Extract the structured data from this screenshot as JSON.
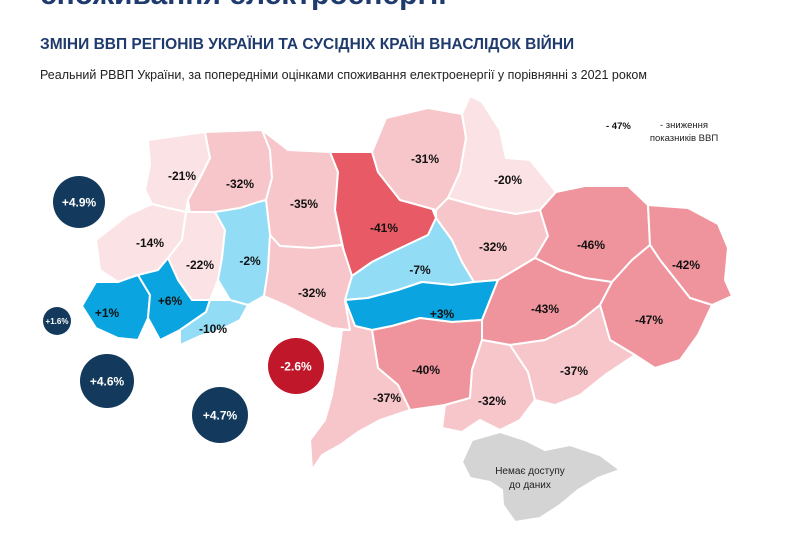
{
  "header": {
    "cut_title": "споживання електроенергії",
    "title": "ЗМІНИ ВВП РЕГІОНІВ УКРАЇНИ ТА СУСІДНІХ КРАЇН ВНАСЛІДОК ВІЙНИ",
    "subtitle": "Реальний РВВП України, за попередніми оцінками споживання електроенергії у порівнянні з 2021 роком"
  },
  "legend": {
    "value": "- 47%",
    "description": "- зниження показників ВВП"
  },
  "regions": [
    {
      "key": "volyn",
      "label": "-21%",
      "value": -21
    },
    {
      "key": "rivne",
      "label": "-32%",
      "value": -32
    },
    {
      "key": "zhytomyr",
      "label": "-35%",
      "value": -35
    },
    {
      "key": "kyiv",
      "label": "-41%",
      "value": -41
    },
    {
      "key": "chernihiv",
      "label": "-31%",
      "value": -31
    },
    {
      "key": "sumy",
      "label": "-20%",
      "value": -20
    },
    {
      "key": "lviv",
      "label": "-14%",
      "value": -14
    },
    {
      "key": "ternopil",
      "label": "-22%",
      "value": -22
    },
    {
      "key": "khmelnytskyi",
      "label": "-2%",
      "value": -2
    },
    {
      "key": "vinnytsia",
      "label": "-32%",
      "value": -32
    },
    {
      "key": "cherkasy",
      "label": "-7%",
      "value": -7
    },
    {
      "key": "poltava",
      "label": "-32%",
      "value": -32
    },
    {
      "key": "kharkiv",
      "label": "-46%",
      "value": -46
    },
    {
      "key": "luhansk",
      "label": "-42%",
      "value": -42
    },
    {
      "key": "zakarpattia",
      "label": "+1%",
      "value": 1
    },
    {
      "key": "ivano-frankivsk",
      "label": "+6%",
      "value": 6
    },
    {
      "key": "chernivtsi",
      "label": "-10%",
      "value": -10
    },
    {
      "key": "kirovohrad",
      "label": "+3%",
      "value": 3
    },
    {
      "key": "dnipropetrovsk",
      "label": "-43%",
      "value": -43
    },
    {
      "key": "donetsk",
      "label": "-47%",
      "value": -47
    },
    {
      "key": "mykolaiv",
      "label": "-40%",
      "value": -40
    },
    {
      "key": "odesa",
      "label": "-37%",
      "value": -37
    },
    {
      "key": "kherson",
      "label": "-32%",
      "value": -32
    },
    {
      "key": "zaporizhzhia",
      "label": "-37%",
      "value": -37
    }
  ],
  "neighbors": [
    {
      "key": "poland",
      "label": "+4.9%",
      "value": 4.9
    },
    {
      "key": "slovakia",
      "label": "+1.6%",
      "value": 1.6
    },
    {
      "key": "hungary",
      "label": "+4.6%",
      "value": 4.6
    },
    {
      "key": "romania",
      "label": "+4.7%",
      "value": 4.7
    },
    {
      "key": "moldova",
      "label": "-2.6%",
      "value": -2.6
    }
  ],
  "crimea": {
    "label": "Немає доступу до даних"
  },
  "colors": {
    "title": "#1f3b6e",
    "neighbor_positive": "#133a5c",
    "neighbor_negative": "#c0182a",
    "map_border": "#ffffff",
    "no_data": "#d4d4d4",
    "growth_strong": "#0aa5e0",
    "growth_light": "#93dcf5",
    "decline_light": "#fbe3e5",
    "decline_mid": "#f6c6ca",
    "decline_strong": "#ef949c",
    "decline_max": "#e85b66"
  }
}
